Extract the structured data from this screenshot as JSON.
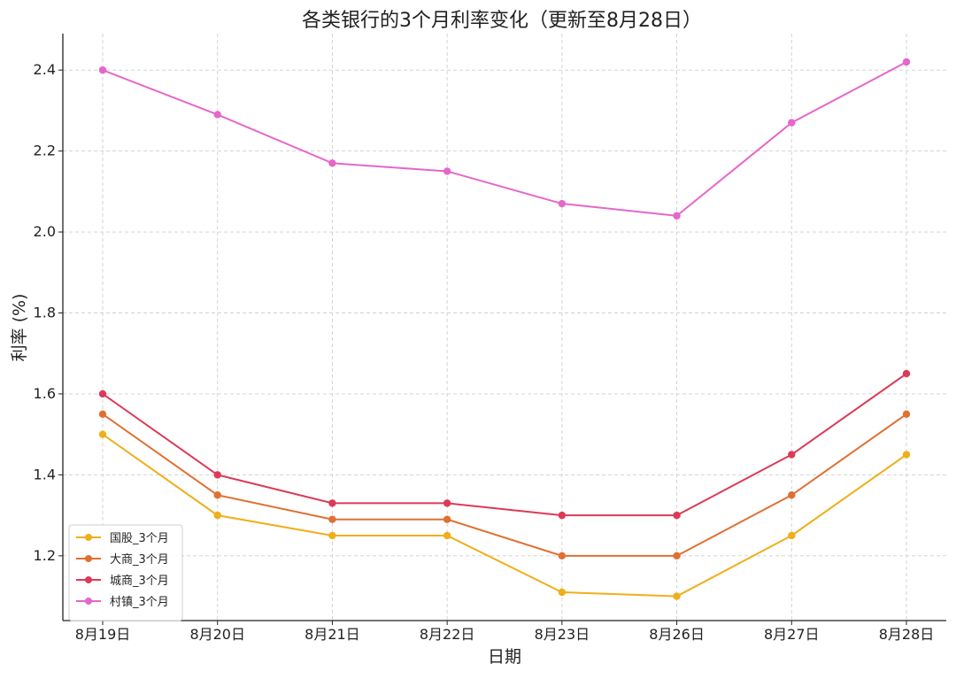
{
  "chart_data": {
    "type": "line",
    "title": "各类银行的3个月利率变化（更新至8月28日）",
    "xlabel": "日期",
    "ylabel": "利率 (%)",
    "categories": [
      "8月19日",
      "8月20日",
      "8月21日",
      "8月22日",
      "8月23日",
      "8月26日",
      "8月27日",
      "8月28日"
    ],
    "yticks": [
      "1.2",
      "1.4",
      "1.6",
      "1.8",
      "2.0",
      "2.2",
      "2.4"
    ],
    "ylim": [
      1.04,
      2.49
    ],
    "grid": true,
    "legend_position": "lower-left",
    "series": [
      {
        "name": "国股_3个月",
        "color": "#EFAF1A",
        "values": [
          1.5,
          1.3,
          1.25,
          1.25,
          1.11,
          1.1,
          1.25,
          1.45
        ]
      },
      {
        "name": "大商_3个月",
        "color": "#E07032",
        "values": [
          1.55,
          1.35,
          1.29,
          1.29,
          1.2,
          1.2,
          1.35,
          1.55
        ]
      },
      {
        "name": "城商_3个月",
        "color": "#DC3A57",
        "values": [
          1.6,
          1.4,
          1.33,
          1.33,
          1.3,
          1.3,
          1.45,
          1.65
        ]
      },
      {
        "name": "村镇_3个月",
        "color": "#E666C9",
        "values": [
          2.4,
          2.29,
          2.17,
          2.15,
          2.07,
          2.04,
          2.27,
          2.42
        ]
      }
    ]
  }
}
